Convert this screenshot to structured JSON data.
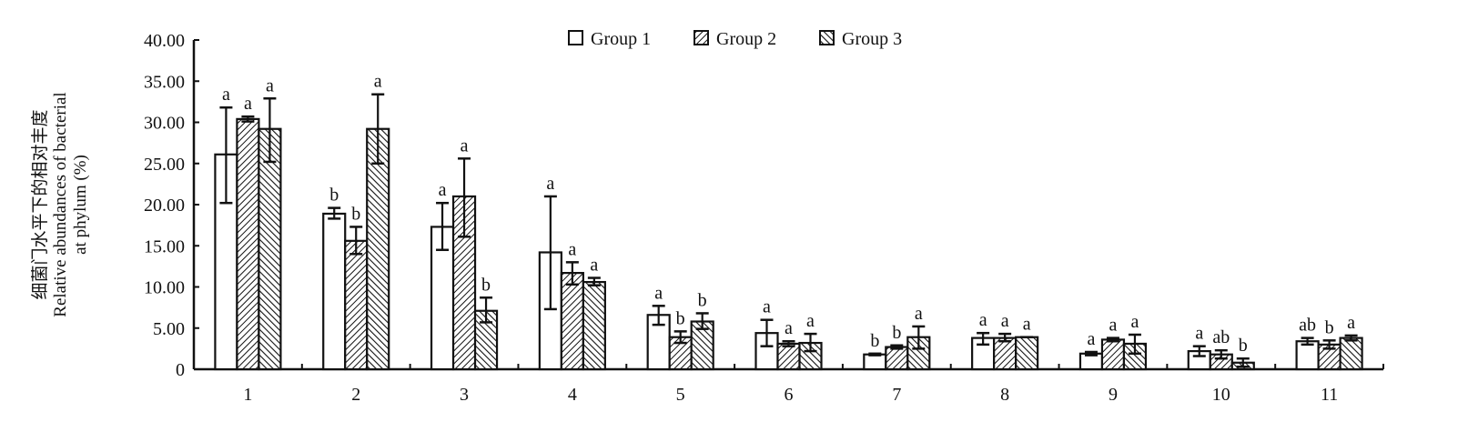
{
  "chart_data": {
    "type": "bar",
    "title": "",
    "ylabel_cn": "细菌门水平下的相对丰度",
    "ylabel_en_1": "Relative abundances of bacterial",
    "ylabel_en_2": "at phylum (%)",
    "xlabel": "",
    "ylim": [
      0,
      40
    ],
    "yticks": [
      "0",
      "5.00",
      "10.00",
      "15.00",
      "20.00",
      "25.00",
      "30.00",
      "35.00",
      "40.00"
    ],
    "ytick_values": [
      0,
      5,
      10,
      15,
      20,
      25,
      30,
      35,
      40
    ],
    "categories": [
      "1",
      "2",
      "3",
      "4",
      "5",
      "6",
      "7",
      "8",
      "9",
      "10",
      "11"
    ],
    "legend_position": "top-center",
    "series": [
      {
        "name": "Group 1",
        "values": [
          26.1,
          18.9,
          17.3,
          14.2,
          6.6,
          4.4,
          1.8,
          3.8,
          1.9,
          2.2,
          3.4
        ],
        "err_low": [
          20.2,
          18.3,
          14.5,
          7.3,
          5.4,
          2.8,
          1.7,
          3.0,
          1.7,
          1.6,
          3.0
        ],
        "err_high": [
          31.8,
          19.6,
          20.2,
          21.0,
          7.7,
          6.0,
          1.9,
          4.4,
          2.1,
          2.8,
          3.8
        ],
        "letters": [
          "a",
          "b",
          "a",
          "a",
          "a",
          "a",
          "b",
          "a",
          "a",
          "a",
          "ab"
        ]
      },
      {
        "name": "Group 2",
        "values": [
          30.4,
          15.6,
          21.0,
          11.7,
          3.9,
          3.1,
          2.7,
          3.8,
          3.6,
          1.8,
          3.0
        ],
        "err_low": [
          30.1,
          14.0,
          16.1,
          10.3,
          3.2,
          2.8,
          2.5,
          3.4,
          3.4,
          1.3,
          2.5
        ],
        "err_high": [
          30.7,
          17.3,
          25.6,
          13.0,
          4.6,
          3.4,
          2.9,
          4.3,
          3.8,
          2.3,
          3.5
        ],
        "letters": [
          "a",
          "b",
          "a",
          "a",
          "b",
          "a",
          "b",
          "a",
          "a",
          "ab",
          "b"
        ]
      },
      {
        "name": "Group 3",
        "values": [
          29.2,
          29.2,
          7.1,
          10.6,
          5.8,
          3.2,
          3.9,
          3.9,
          3.1,
          0.8,
          3.8
        ],
        "err_low": [
          25.2,
          25.0,
          5.7,
          10.2,
          4.9,
          2.2,
          2.5,
          3.9,
          1.9,
          0.3,
          3.5
        ],
        "err_high": [
          32.9,
          33.4,
          8.7,
          11.1,
          6.8,
          4.3,
          5.2,
          3.9,
          4.2,
          1.3,
          4.1
        ],
        "letters": [
          "a",
          "a",
          "b",
          "a",
          "b",
          "a",
          "a",
          "a",
          "a",
          "b",
          "a"
        ]
      }
    ]
  }
}
